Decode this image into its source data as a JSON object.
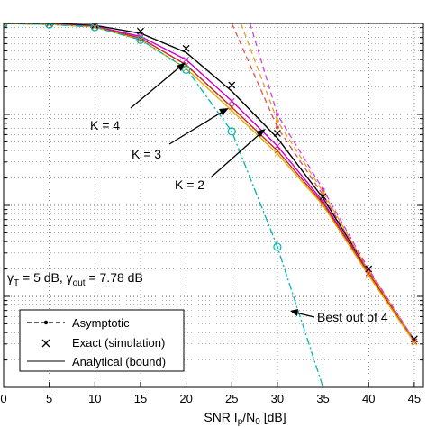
{
  "chart_data": {
    "type": "line",
    "xlabel": "SNR I_p/N_0 [dB]",
    "xlabel_parts": {
      "base": "SNR I",
      "sub1": "p",
      "mid": "/N",
      "sub2": "0",
      "tail": " [dB]"
    },
    "xticks": [
      "0",
      "5",
      "10",
      "15",
      "20",
      "25",
      "30",
      "35",
      "40",
      "45"
    ],
    "xlim": [
      0,
      46
    ],
    "ylog": true,
    "ylim": [
      0.0001,
      1
    ],
    "grid": true,
    "colors": {
      "K4": "#000000",
      "K3": "#cc00cc",
      "K2": "#cc2222",
      "yellow": "#e0b000",
      "best": "#00b4b4",
      "asym_red": "#e05050",
      "asym_orange": "#e8a020",
      "asym_magenta": "#d040d0"
    },
    "series": [
      {
        "key": "K4",
        "style": "solid",
        "x": [
          0,
          5,
          10,
          15,
          20,
          25,
          30,
          35,
          40,
          45
        ],
        "y": [
          1.0,
          0.99,
          0.95,
          0.78,
          0.48,
          0.18,
          0.055,
          0.012,
          0.0019,
          0.00033
        ]
      },
      {
        "key": "K3",
        "style": "solid",
        "x": [
          0,
          5,
          10,
          15,
          20,
          25,
          30,
          35,
          40,
          45
        ],
        "y": [
          1.0,
          0.985,
          0.93,
          0.72,
          0.4,
          0.14,
          0.045,
          0.011,
          0.0018,
          0.00032
        ]
      },
      {
        "key": "K2",
        "style": "solid",
        "x": [
          0,
          5,
          10,
          15,
          20,
          25,
          30,
          35,
          40,
          45
        ],
        "y": [
          1.0,
          0.98,
          0.92,
          0.69,
          0.35,
          0.12,
          0.04,
          0.0105,
          0.0018,
          0.00032
        ]
      },
      {
        "key": "yellow",
        "style": "solid",
        "x": [
          0,
          5,
          10,
          15,
          20,
          25,
          30,
          35,
          40,
          45
        ],
        "y": [
          1.0,
          0.975,
          0.91,
          0.66,
          0.32,
          0.11,
          0.037,
          0.01,
          0.0017,
          0.00031
        ]
      },
      {
        "key": "best",
        "style": "dashdot",
        "x": [
          0,
          5,
          10,
          15,
          20,
          25,
          30,
          35
        ],
        "y": [
          1.0,
          0.975,
          0.91,
          0.66,
          0.32,
          0.065,
          0.0035,
          0.0001
        ]
      },
      {
        "key": "asym_red",
        "style": "dashed",
        "x": [
          25.0,
          30,
          35,
          40,
          45
        ],
        "y": [
          1.0,
          0.072,
          0.013,
          0.0019,
          0.00033
        ]
      },
      {
        "key": "asym_orange",
        "style": "dashed",
        "x": [
          26.0,
          30,
          35,
          40,
          45
        ],
        "y": [
          1.0,
          0.085,
          0.014,
          0.0019,
          0.00033
        ]
      },
      {
        "key": "asym_magenta",
        "style": "dashed",
        "x": [
          27.0,
          30,
          35,
          40,
          45
        ],
        "y": [
          1.0,
          0.1,
          0.015,
          0.002,
          0.00033
        ]
      }
    ],
    "sim_markers": {
      "x": [
        0,
        5,
        10,
        15,
        20,
        25,
        30,
        35,
        40,
        45
      ],
      "y": [
        1.0,
        0.99,
        0.955,
        0.82,
        0.53,
        0.21,
        0.062,
        0.0125,
        0.002,
        0.00034
      ]
    },
    "best_markers": {
      "x": [
        0,
        5,
        10,
        15,
        20,
        25,
        30
      ],
      "y": [
        1.0,
        0.975,
        0.91,
        0.66,
        0.31,
        0.065,
        0.0035
      ]
    },
    "annotations": {
      "k4": "K = 4",
      "k3": "K = 3",
      "k2": "K = 2",
      "best": "Best out of 4",
      "gamma_t": "γ",
      "gamma_t_sub": "T",
      "gamma_t_val": " = 5 dB, ",
      "gamma_out": "γ",
      "gamma_out_sub": "out",
      "gamma_out_val": " = 7.78 dB"
    },
    "legend": {
      "placement": "bottom-left",
      "entries": [
        "Asymptotic",
        "Exact (simulation)",
        "Analytical (bound)"
      ]
    }
  }
}
